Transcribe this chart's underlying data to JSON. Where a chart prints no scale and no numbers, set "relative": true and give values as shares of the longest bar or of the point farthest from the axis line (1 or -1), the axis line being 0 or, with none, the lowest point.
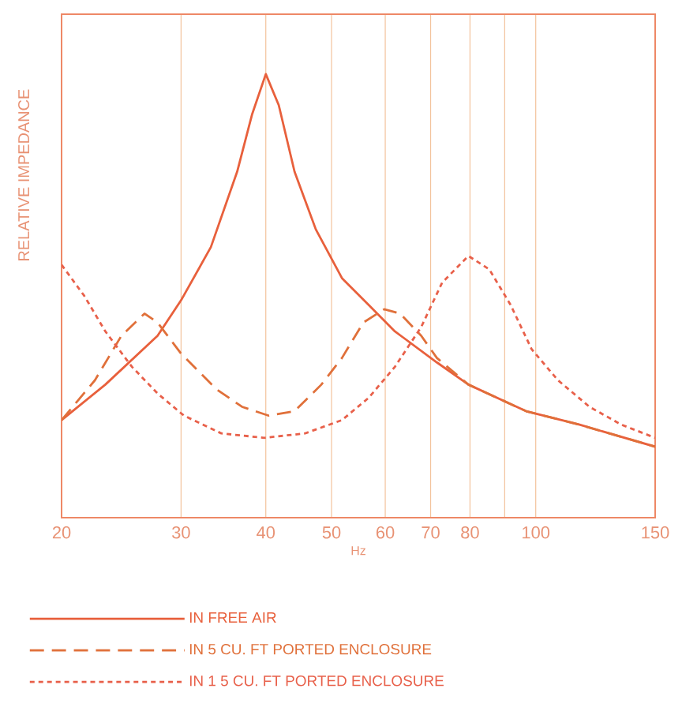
{
  "chart_data": {
    "type": "line",
    "xlabel": "Hz",
    "ylabel": "RELATIVE IMPEDANCE",
    "relative": true,
    "log": "x",
    "xlim": [
      20,
      150
    ],
    "xticks": [
      20,
      30,
      40,
      50,
      60,
      70,
      80,
      {
        "value": 90,
        "label": null
      },
      100,
      150
    ],
    "grid": "x",
    "legend": "bottom",
    "series": [
      {
        "name": "IN FREE AIR",
        "color": "#e8603c",
        "line_style": "solid",
        "x": [
          20,
          23.2,
          27.7,
          30.0,
          33.2,
          36.3,
          38.2,
          40.0,
          41.8,
          44.1,
          47.4,
          51.8,
          56.7,
          62.0,
          71.5,
          79.6,
          96.8,
          115.8,
          150
        ],
        "values": [
          0.22,
          0.3,
          0.41,
          0.49,
          0.61,
          0.78,
          0.91,
          1.0,
          0.93,
          0.78,
          0.65,
          0.54,
          0.48,
          0.42,
          0.35,
          0.3,
          0.24,
          0.21,
          0.16
        ]
      },
      {
        "name": "IN 5 CU. FT  PORTED ENCLOSURE",
        "color": "#e0703a",
        "line_style": "dashed",
        "x": [
          20,
          22.4,
          24.5,
          26.5,
          27.7,
          30.0,
          33.8,
          36.9,
          40.4,
          44.1,
          48.3,
          51.8,
          55.7,
          59.8,
          63.1,
          67.8,
          71.5,
          79.6,
          96.8,
          115.8,
          150
        ],
        "values": [
          0.22,
          0.31,
          0.41,
          0.46,
          0.44,
          0.37,
          0.29,
          0.25,
          0.23,
          0.24,
          0.3,
          0.36,
          0.44,
          0.47,
          0.46,
          0.41,
          0.36,
          0.3,
          0.24,
          0.21,
          0.16
        ]
      },
      {
        "name": "IN 1 5 CU. FT  PORTED ENCLOSURE",
        "color": "#e8604a",
        "line_style": "dotted",
        "x": [
          20,
          21.6,
          23.2,
          25.4,
          27.7,
          30.3,
          34.4,
          39.8,
          45.7,
          51.8,
          56.7,
          62.0,
          67.8,
          72.8,
          79.6,
          85.4,
          91.8,
          98.6,
          107.8,
          120.0,
          133.6,
          150
        ],
        "values": [
          0.57,
          0.5,
          0.42,
          0.34,
          0.28,
          0.23,
          0.19,
          0.18,
          0.19,
          0.22,
          0.27,
          0.34,
          0.43,
          0.53,
          0.59,
          0.56,
          0.48,
          0.38,
          0.31,
          0.25,
          0.21,
          0.18
        ]
      }
    ]
  }
}
